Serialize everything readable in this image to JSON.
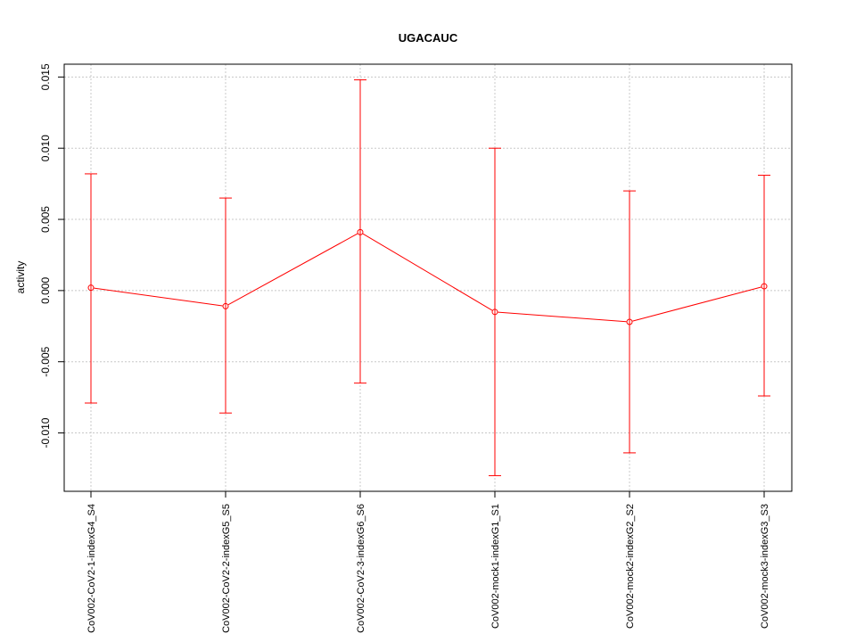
{
  "chart_data": {
    "type": "line",
    "title": "UGACAUC",
    "xlabel": "",
    "ylabel": "activity",
    "categories": [
      "CoV002-CoV2-1-indexG4_S4",
      "CoV002-CoV2-2-indexG5_S5",
      "CoV002-CoV2-3-indexG6_S6",
      "CoV002-mock1-indexG1_S1",
      "CoV002-mock2-indexG2_S2",
      "CoV002-mock3-indexG3_S3"
    ],
    "series": [
      {
        "values": [
          0.0002,
          -0.0011,
          0.0041,
          -0.0015,
          -0.0022,
          0.0003
        ],
        "lower": [
          -0.0079,
          -0.0086,
          -0.0065,
          -0.013,
          -0.0114,
          -0.0074
        ],
        "upper": [
          0.0082,
          0.0065,
          0.0148,
          0.01,
          0.007,
          0.0081
        ]
      }
    ],
    "yticks": [
      "-0.010",
      "-0.005",
      "0.000",
      "0.005",
      "0.010",
      "0.015"
    ],
    "ytick_values": [
      -0.01,
      -0.005,
      0,
      0.005,
      0.01,
      0.015
    ],
    "ylim": [
      -0.0141,
      0.0159
    ],
    "grid": true,
    "colors": {
      "series": "#ff0000",
      "grid": "#c8c8c8",
      "axis": "#000000"
    }
  }
}
